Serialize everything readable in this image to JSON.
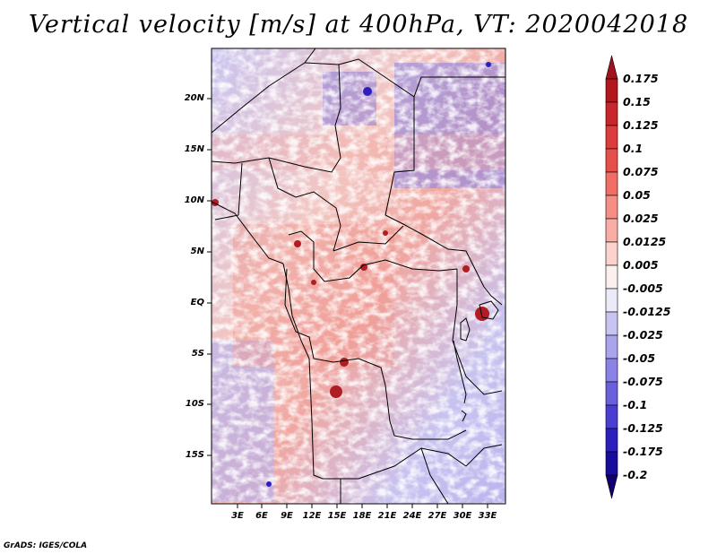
{
  "title": "Vertical velocity [m/s] at 400hPa, VT: 2020042018",
  "map": {
    "field": "vertical velocity",
    "units": "m/s",
    "level": "400hPa",
    "valid_time": "2020042018",
    "lat_labels": [
      "20N",
      "15N",
      "10N",
      "5N",
      "EQ",
      "5S",
      "10S",
      "15S"
    ],
    "lon_labels": [
      "3E",
      "6E",
      "9E",
      "12E",
      "15E",
      "18E",
      "21E",
      "24E",
      "27E",
      "30E",
      "33E"
    ]
  },
  "colorbar": {
    "labels": [
      "0.175",
      "0.15",
      "0.125",
      "0.1",
      "0.075",
      "0.05",
      "0.025",
      "0.0125",
      "0.005",
      "-0.005",
      "-0.0125",
      "-0.025",
      "-0.05",
      "-0.075",
      "-0.1",
      "-0.125",
      "-0.175",
      "-0.2"
    ],
    "colors": [
      "#a0141e",
      "#b4161e",
      "#c8262a",
      "#dc3c3c",
      "#e6504b",
      "#f06e64",
      "#f68e86",
      "#f8aea6",
      "#fcd2cc",
      "#fcf0ee",
      "#eceaf8",
      "#c8c4f2",
      "#aaa4ec",
      "#8a82e4",
      "#6a60dc",
      "#4a3ed0",
      "#2c20bc",
      "#180c9c",
      "#120070"
    ]
  },
  "footer": "GrADS: IGES/COLA"
}
